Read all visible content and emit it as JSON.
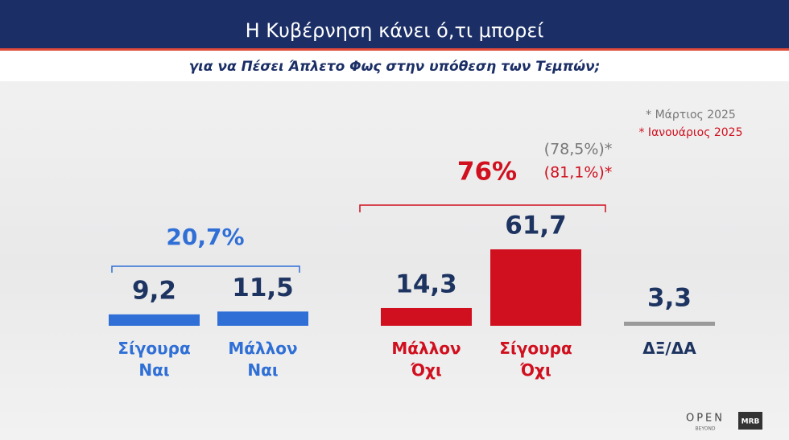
{
  "chart_data": {
    "type": "bar",
    "title": "Η Κυβέρνηση κάνει ό,τι μπορεί",
    "subtitle": "για να Πέσει Άπλετο Φως στην υπόθεση των Τεμπών;",
    "categories": [
      "Σίγουρα Ναι",
      "Μάλλον Ναι",
      "Μάλλον Όχι",
      "Σίγουρα Όχι",
      "ΔΞ/ΔΑ"
    ],
    "values": [
      9.2,
      11.5,
      14.3,
      61.7,
      3.3
    ],
    "value_labels": [
      "9,2",
      "11,5",
      "14,3",
      "61,7",
      "3,3"
    ],
    "colors": [
      "#2f6fd6",
      "#2f6fd6",
      "#d0101e",
      "#d0101e",
      "#9a9a9a"
    ],
    "label_colors": [
      "#2f6fd6",
      "#2f6fd6",
      "#d0101e",
      "#d0101e",
      "#1d3461"
    ],
    "groups": [
      {
        "label": "20,7%",
        "color": "#2f6fd6"
      },
      {
        "label": "76%",
        "color": "#d0101e"
      }
    ],
    "comparisons": [
      {
        "label": "(78,5%)*",
        "color": "#777777"
      },
      {
        "label": "(81,1%)*",
        "color": "#d0101e"
      }
    ],
    "legend": [
      {
        "label": "* Μάρτιος 2025",
        "color": "#777777"
      },
      {
        "label": "* Ιανουάριος 2025",
        "color": "#d0101e"
      }
    ],
    "logos": [
      "OPEN",
      "BEYOND",
      "MRB"
    ]
  }
}
